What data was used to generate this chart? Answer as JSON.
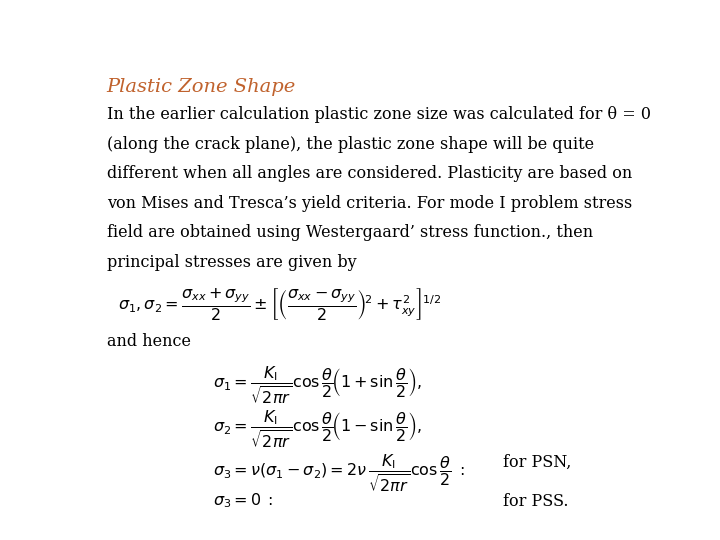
{
  "title": "Plastic Zone Shape",
  "title_color": "#C0622D",
  "bg_color": "#FFFFFF",
  "body_line1": "In the earlier calculation plastic zone size was calculated for θ = 0",
  "body_line2": "(along the crack plane), the plastic zone shape will be quite",
  "body_line3": "different when all angles are considered. Plasticity are based on",
  "body_line4": "von Mises and Tresca’s yield criteria. For mode I problem stress",
  "body_line5": "field are obtained using Westergaard’ stress function., then",
  "body_line6": "principal stresses are given by",
  "and_hence": "and hence",
  "eq4_label": "for PSN,",
  "eq5_label": "for PSS.",
  "text_fontsize": 11.5,
  "title_fontsize": 14,
  "eq_fontsize": 11.5
}
